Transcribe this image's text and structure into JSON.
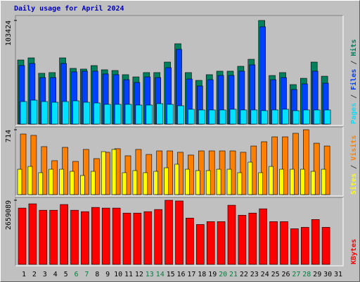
{
  "chart_data": [
    {
      "type": "bar",
      "title": "Daily usage for April 2024",
      "ylim": [
        0,
        103424
      ],
      "yticks": [
        103424
      ],
      "legend_separator": " / ",
      "series": [
        {
          "name": "Hits",
          "color": "#00805c",
          "values": [
            64000,
            66100,
            50700,
            51400,
            66100,
            55600,
            54900,
            58400,
            54200,
            53500,
            49300,
            47100,
            51400,
            51400,
            61900,
            80200,
            51400,
            43600,
            49300,
            52800,
            52800,
            57700,
            64700,
            103424,
            48500,
            51400,
            39400,
            45700,
            61900,
            47800,
            null
          ]
        },
        {
          "name": "Files",
          "color": "#0040ff",
          "values": [
            58400,
            60500,
            46400,
            46400,
            60500,
            52100,
            52800,
            52800,
            50000,
            49300,
            44300,
            41500,
            47100,
            46400,
            56300,
            74600,
            45000,
            38000,
            44300,
            48500,
            48500,
            52800,
            59100,
            97100,
            44300,
            46400,
            34500,
            40100,
            52800,
            40800,
            null
          ]
        },
        {
          "name": "Pages",
          "color": "#00e0ff",
          "values": [
            22500,
            23900,
            22500,
            21800,
            22500,
            23200,
            21800,
            21100,
            19700,
            19700,
            19700,
            19000,
            19000,
            20400,
            19700,
            18300,
            14800,
            14100,
            14100,
            14100,
            14800,
            14100,
            14100,
            13400,
            14100,
            14800,
            13400,
            14100,
            14100,
            14100,
            null
          ]
        }
      ]
    },
    {
      "type": "bar",
      "ylim": [
        0,
        714
      ],
      "yticks": [
        714
      ],
      "legend_separator": " / ",
      "series": [
        {
          "name": "Visits",
          "color": "#ff8000",
          "values": [
            667,
            652,
            528,
            373,
            520,
            365,
            497,
            396,
            466,
            505,
            427,
            497,
            442,
            481,
            481,
            466,
            435,
            481,
            481,
            481,
            481,
            466,
            535,
            582,
            636,
            636,
            675,
            714,
            566,
            535,
            null
          ]
        },
        {
          "name": "Sites",
          "color": "#ffff00",
          "values": [
            279,
            310,
            241,
            279,
            279,
            256,
            210,
            256,
            473,
            497,
            241,
            264,
            241,
            256,
            295,
            334,
            279,
            264,
            264,
            279,
            279,
            241,
            357,
            241,
            310,
            279,
            279,
            279,
            256,
            279,
            null
          ]
        }
      ]
    },
    {
      "type": "bar",
      "ylim": [
        0,
        2659089
      ],
      "yticks": [
        2659089
      ],
      "categories": [
        "1",
        "2",
        "3",
        "4",
        "5",
        "6",
        "7",
        "8",
        "9",
        "10",
        "11",
        "12",
        "13",
        "14",
        "15",
        "16",
        "17",
        "18",
        "19",
        "20",
        "21",
        "22",
        "23",
        "24",
        "25",
        "26",
        "27",
        "28",
        "29",
        "30",
        "31"
      ],
      "category_colors": [
        "#000000",
        "#000000",
        "#000000",
        "#000000",
        "#000000",
        "#008040",
        "#008040",
        "#000000",
        "#000000",
        "#000000",
        "#000000",
        "#000000",
        "#008040",
        "#008040",
        "#000000",
        "#000000",
        "#000000",
        "#000000",
        "#000000",
        "#008040",
        "#008040",
        "#000000",
        "#000000",
        "#000000",
        "#000000",
        "#000000",
        "#008040",
        "#008040",
        "#000000",
        "#000000",
        "#000000"
      ],
      "series": [
        {
          "name": "KBytes",
          "color": "#ff0000",
          "values": [
            2334000,
            2511000,
            2245000,
            2245000,
            2482000,
            2245000,
            2186000,
            2363000,
            2334000,
            2334000,
            2127000,
            2127000,
            2186000,
            2275000,
            2659089,
            2630000,
            1920000,
            1654000,
            1773000,
            1773000,
            2452000,
            2038000,
            2127000,
            2304000,
            1773000,
            1773000,
            1477000,
            1536000,
            1861000,
            1536000,
            null
          ]
        }
      ]
    }
  ]
}
